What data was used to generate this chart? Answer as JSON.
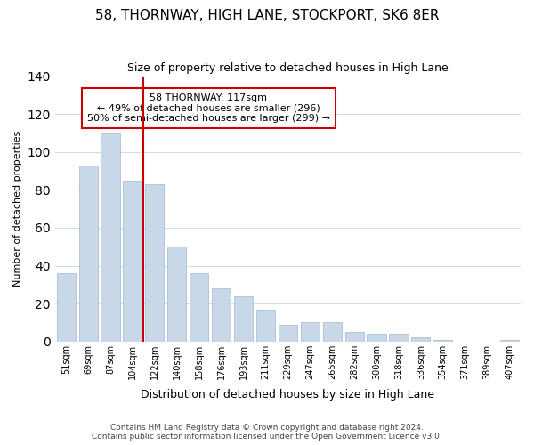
{
  "title": "58, THORNWAY, HIGH LANE, STOCKPORT, SK6 8ER",
  "subtitle": "Size of property relative to detached houses in High Lane",
  "xlabel": "Distribution of detached houses by size in High Lane",
  "ylabel": "Number of detached properties",
  "bar_labels": [
    "51sqm",
    "69sqm",
    "87sqm",
    "104sqm",
    "122sqm",
    "140sqm",
    "158sqm",
    "176sqm",
    "193sqm",
    "211sqm",
    "229sqm",
    "247sqm",
    "265sqm",
    "282sqm",
    "300sqm",
    "318sqm",
    "336sqm",
    "354sqm",
    "371sqm",
    "389sqm",
    "407sqm"
  ],
  "bar_values": [
    36,
    93,
    110,
    85,
    83,
    50,
    36,
    28,
    24,
    17,
    9,
    10,
    10,
    5,
    4,
    4,
    2,
    1,
    0,
    0,
    1
  ],
  "bar_color": "#c8d8e8",
  "bar_edge_color": "#a0b8cc",
  "vline_x": 4,
  "vline_color": "#cc0000",
  "annotation_title": "58 THORNWAY: 117sqm",
  "annotation_line1": "← 49% of detached houses are smaller (296)",
  "annotation_line2": "50% of semi-detached houses are larger (299) →",
  "annotation_box_color": "#ffffff",
  "annotation_box_edge": "#cc0000",
  "ylim": [
    0,
    140
  ],
  "yticks": [
    0,
    20,
    40,
    60,
    80,
    100,
    120,
    140
  ],
  "footer_line1": "Contains HM Land Registry data © Crown copyright and database right 2024.",
  "footer_line2": "Contains public sector information licensed under the Open Government Licence v3.0.",
  "bg_color": "#ffffff",
  "grid_color": "#d0dce8"
}
